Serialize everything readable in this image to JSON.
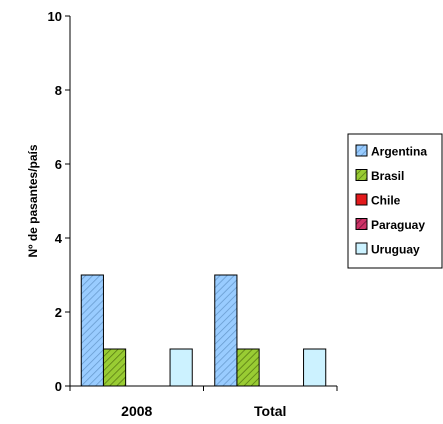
{
  "chart_data": {
    "type": "bar",
    "categories": [
      "2008",
      "Total"
    ],
    "ylabel": "Nº de pasantes/país",
    "ylim": [
      0,
      10
    ],
    "yticks": [
      0,
      2,
      4,
      6,
      8,
      10
    ],
    "grid": false,
    "legend_position": "right",
    "series": [
      {
        "name": "Argentina",
        "values": [
          3,
          3
        ],
        "color": "#99ccff",
        "pattern": "diagonal-hatch"
      },
      {
        "name": "Brasil",
        "values": [
          1,
          1
        ],
        "color": "#99cc33",
        "pattern": "diagonal-hatch"
      },
      {
        "name": "Chile",
        "values": [
          0,
          0
        ],
        "color": "#e31a1c",
        "pattern": "solid"
      },
      {
        "name": "Paraguay",
        "values": [
          0,
          0
        ],
        "color": "#993366",
        "pattern": "diagonal-hatch"
      },
      {
        "name": "Uruguay",
        "values": [
          1,
          1
        ],
        "color": "#ccf2ff",
        "pattern": "solid"
      }
    ]
  }
}
